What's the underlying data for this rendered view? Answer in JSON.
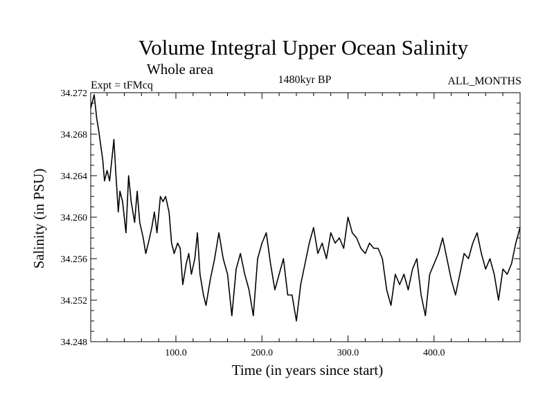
{
  "chart_data": {
    "type": "line",
    "title": "Volume Integral Upper Ocean Salinity",
    "subtitle": "Whole area",
    "experiment": "Expt = tFMcq",
    "period": "1480kyr BP",
    "months": "ALL_MONTHS",
    "xlabel": "Time (in years since start)",
    "ylabel": "Salinity (in PSU)",
    "xlim": [
      1,
      500
    ],
    "ylim": [
      34.248,
      34.272
    ],
    "xticks": [
      100,
      200,
      300,
      400
    ],
    "xtick_labels": [
      "100.0",
      "200.0",
      "300.0",
      "400.0"
    ],
    "yticks": [
      34.248,
      34.252,
      34.256,
      34.26,
      34.264,
      34.268,
      34.272
    ],
    "ytick_labels": [
      "34.248",
      "34.252",
      "34.256",
      "34.260",
      "34.264",
      "34.268",
      "34.272"
    ],
    "series": [
      {
        "name": "Salinity",
        "x": [
          1,
          5,
          8,
          10,
          15,
          17,
          20,
          23,
          28,
          30,
          33,
          35,
          38,
          42,
          45,
          48,
          52,
          55,
          58,
          62,
          65,
          68,
          72,
          75,
          78,
          82,
          85,
          88,
          92,
          95,
          98,
          102,
          105,
          108,
          112,
          115,
          118,
          122,
          125,
          128,
          132,
          135,
          140,
          145,
          150,
          155,
          160,
          165,
          170,
          175,
          180,
          185,
          190,
          195,
          200,
          205,
          210,
          215,
          220,
          225,
          230,
          235,
          240,
          245,
          250,
          255,
          260,
          265,
          270,
          275,
          280,
          285,
          290,
          295,
          300,
          305,
          310,
          315,
          320,
          325,
          330,
          335,
          340,
          345,
          350,
          355,
          360,
          365,
          370,
          375,
          380,
          385,
          390,
          395,
          400,
          405,
          410,
          415,
          420,
          425,
          430,
          435,
          440,
          445,
          450,
          455,
          460,
          465,
          470,
          475,
          480,
          485,
          490,
          495,
          500
        ],
        "y": [
          34.2705,
          34.2718,
          34.2695,
          34.2685,
          34.2655,
          34.2635,
          34.2645,
          34.2635,
          34.2675,
          34.2645,
          34.2605,
          34.2625,
          34.2615,
          34.2585,
          34.264,
          34.2615,
          34.2595,
          34.2625,
          34.2595,
          34.258,
          34.2565,
          34.2575,
          34.259,
          34.2605,
          34.2585,
          34.262,
          34.2615,
          34.262,
          34.2605,
          34.2575,
          34.2565,
          34.2575,
          34.257,
          34.2535,
          34.2555,
          34.2565,
          34.2545,
          34.256,
          34.2585,
          34.2545,
          34.2525,
          34.2515,
          34.254,
          34.256,
          34.2585,
          34.256,
          34.2545,
          34.2505,
          34.255,
          34.2565,
          34.2545,
          34.253,
          34.2505,
          34.256,
          34.2575,
          34.2585,
          34.2555,
          34.253,
          34.2545,
          34.256,
          34.2525,
          34.2525,
          34.25,
          34.2535,
          34.2555,
          34.2575,
          34.259,
          34.2565,
          34.2575,
          34.256,
          34.2585,
          34.2575,
          34.258,
          34.257,
          34.26,
          34.2585,
          34.258,
          34.257,
          34.2565,
          34.2575,
          34.257,
          34.257,
          34.256,
          34.253,
          34.2515,
          34.2545,
          34.2535,
          34.2545,
          34.253,
          34.255,
          34.256,
          34.2525,
          34.2505,
          34.2545,
          34.2555,
          34.2565,
          34.258,
          34.256,
          34.254,
          34.2525,
          34.2545,
          34.2565,
          34.256,
          34.2575,
          34.2585,
          34.2565,
          34.255,
          34.256,
          34.2545,
          34.252,
          34.255,
          34.2545,
          34.2555,
          34.2575,
          34.259
        ]
      }
    ]
  }
}
